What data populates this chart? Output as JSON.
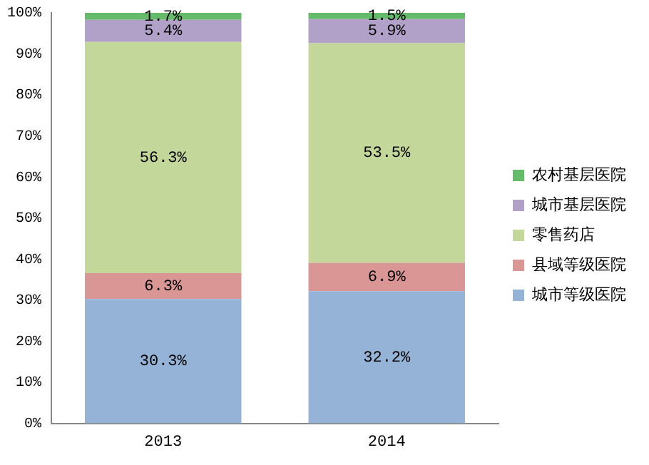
{
  "chart_data": {
    "type": "bar",
    "stacked": true,
    "categories": [
      "2013",
      "2014"
    ],
    "ylim": [
      0,
      100
    ],
    "yticks": [
      {
        "value": 0,
        "label": "0%"
      },
      {
        "value": 10,
        "label": "10%"
      },
      {
        "value": 20,
        "label": "20%"
      },
      {
        "value": 30,
        "label": "30%"
      },
      {
        "value": 40,
        "label": "40%"
      },
      {
        "value": 50,
        "label": "50%"
      },
      {
        "value": 60,
        "label": "60%"
      },
      {
        "value": 70,
        "label": "70%"
      },
      {
        "value": 80,
        "label": "80%"
      },
      {
        "value": 90,
        "label": "90%"
      },
      {
        "value": 100,
        "label": "100%"
      }
    ],
    "grid": false,
    "legend": "right",
    "series": [
      {
        "name": "城市等级医院",
        "color": "#95b3d7",
        "values": [
          30.3,
          32.2
        ],
        "value_labels": [
          "30.3%",
          "32.2%"
        ]
      },
      {
        "name": "县域等级医院",
        "color": "#da9694",
        "values": [
          6.3,
          6.9
        ],
        "value_labels": [
          "6.3%",
          "6.9%"
        ]
      },
      {
        "name": "零售药店",
        "color": "#c4d79b",
        "values": [
          56.3,
          53.5
        ],
        "value_labels": [
          "56.3%",
          "53.5%"
        ]
      },
      {
        "name": "城市基层医院",
        "color": "#b1a0c7",
        "values": [
          5.4,
          5.9
        ],
        "value_labels": [
          "5.4%",
          "5.9%"
        ]
      },
      {
        "name": "农村基层医院",
        "color": "#66bb6a",
        "values": [
          1.7,
          1.5
        ],
        "value_labels": [
          "1.7%",
          "1.5%"
        ]
      }
    ]
  }
}
